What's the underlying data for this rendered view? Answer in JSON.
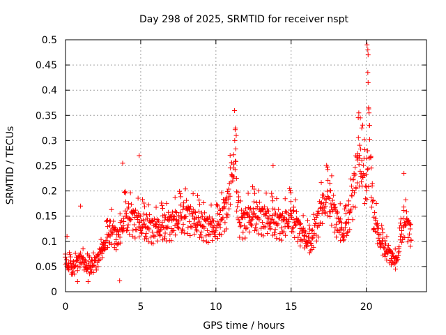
{
  "chart_data": {
    "type": "scatter",
    "title": "Day 298 of 2025, SRMTID for receiver nspt",
    "xlabel": "GPS time / hours",
    "ylabel": "SRMTID / TECUs",
    "xlim": [
      0,
      24
    ],
    "ylim": [
      0,
      0.5
    ],
    "x_ticks": [
      0,
      5,
      10,
      15,
      20
    ],
    "x_tick_labels": [
      "0",
      "5",
      "10",
      "15",
      "20"
    ],
    "y_ticks": [
      0,
      0.05,
      0.1,
      0.15,
      0.2,
      0.25,
      0.3,
      0.35,
      0.4,
      0.45,
      0.5
    ],
    "y_tick_labels": [
      "0",
      "0.05",
      "0.1",
      "0.15",
      "0.2",
      "0.25",
      "0.3",
      "0.35",
      "0.4",
      "0.45",
      "0.5"
    ],
    "grid": true,
    "marker": "+",
    "color": "#ff0000",
    "series": [
      {
        "name": "SRMTID",
        "sample_every_hours": 0.06,
        "x_start": 0.0,
        "x_end": 23.0,
        "trend": [
          [
            0,
            0.06
          ],
          [
            0.5,
            0.05
          ],
          [
            1,
            0.07
          ],
          [
            1.5,
            0.05
          ],
          [
            2,
            0.06
          ],
          [
            2.5,
            0.09
          ],
          [
            3,
            0.13
          ],
          [
            3.5,
            0.11
          ],
          [
            4,
            0.16
          ],
          [
            5,
            0.14
          ],
          [
            6,
            0.13
          ],
          [
            7,
            0.14
          ],
          [
            8,
            0.16
          ],
          [
            9,
            0.14
          ],
          [
            10,
            0.13
          ],
          [
            10.8,
            0.18
          ],
          [
            11.2,
            0.28
          ],
          [
            11.6,
            0.14
          ],
          [
            12.5,
            0.16
          ],
          [
            13.5,
            0.15
          ],
          [
            14.5,
            0.14
          ],
          [
            15,
            0.16
          ],
          [
            15.7,
            0.12
          ],
          [
            16.3,
            0.1
          ],
          [
            17,
            0.17
          ],
          [
            17.5,
            0.2
          ],
          [
            18,
            0.15
          ],
          [
            18.5,
            0.12
          ],
          [
            19,
            0.18
          ],
          [
            19.5,
            0.28
          ],
          [
            20,
            0.22
          ],
          [
            20.2,
            0.3
          ],
          [
            20.5,
            0.15
          ],
          [
            21,
            0.1
          ],
          [
            21.5,
            0.08
          ],
          [
            22,
            0.06
          ],
          [
            22.5,
            0.15
          ],
          [
            23,
            0.12
          ]
        ],
        "highlights": [
          {
            "x": 20.05,
            "y": 0.49
          },
          {
            "x": 20.1,
            "y": 0.48
          },
          {
            "x": 20.12,
            "y": 0.47
          },
          {
            "x": 20.1,
            "y": 0.435
          },
          {
            "x": 20.12,
            "y": 0.415
          },
          {
            "x": 20.15,
            "y": 0.365
          },
          {
            "x": 20.18,
            "y": 0.355
          },
          {
            "x": 20.2,
            "y": 0.33
          },
          {
            "x": 19.5,
            "y": 0.355
          },
          {
            "x": 19.6,
            "y": 0.345
          },
          {
            "x": 19.7,
            "y": 0.325
          },
          {
            "x": 11.3,
            "y": 0.325
          },
          {
            "x": 11.35,
            "y": 0.31
          },
          {
            "x": 11.25,
            "y": 0.3
          },
          {
            "x": 4.9,
            "y": 0.27
          },
          {
            "x": 3.8,
            "y": 0.255
          },
          {
            "x": 13.8,
            "y": 0.25
          },
          {
            "x": 22.5,
            "y": 0.235
          },
          {
            "x": 1.0,
            "y": 0.17
          },
          {
            "x": 0.1,
            "y": 0.11
          },
          {
            "x": 1.5,
            "y": 0.02
          },
          {
            "x": 3.6,
            "y": 0.022
          },
          {
            "x": 0.8,
            "y": 0.02
          }
        ]
      }
    ]
  }
}
